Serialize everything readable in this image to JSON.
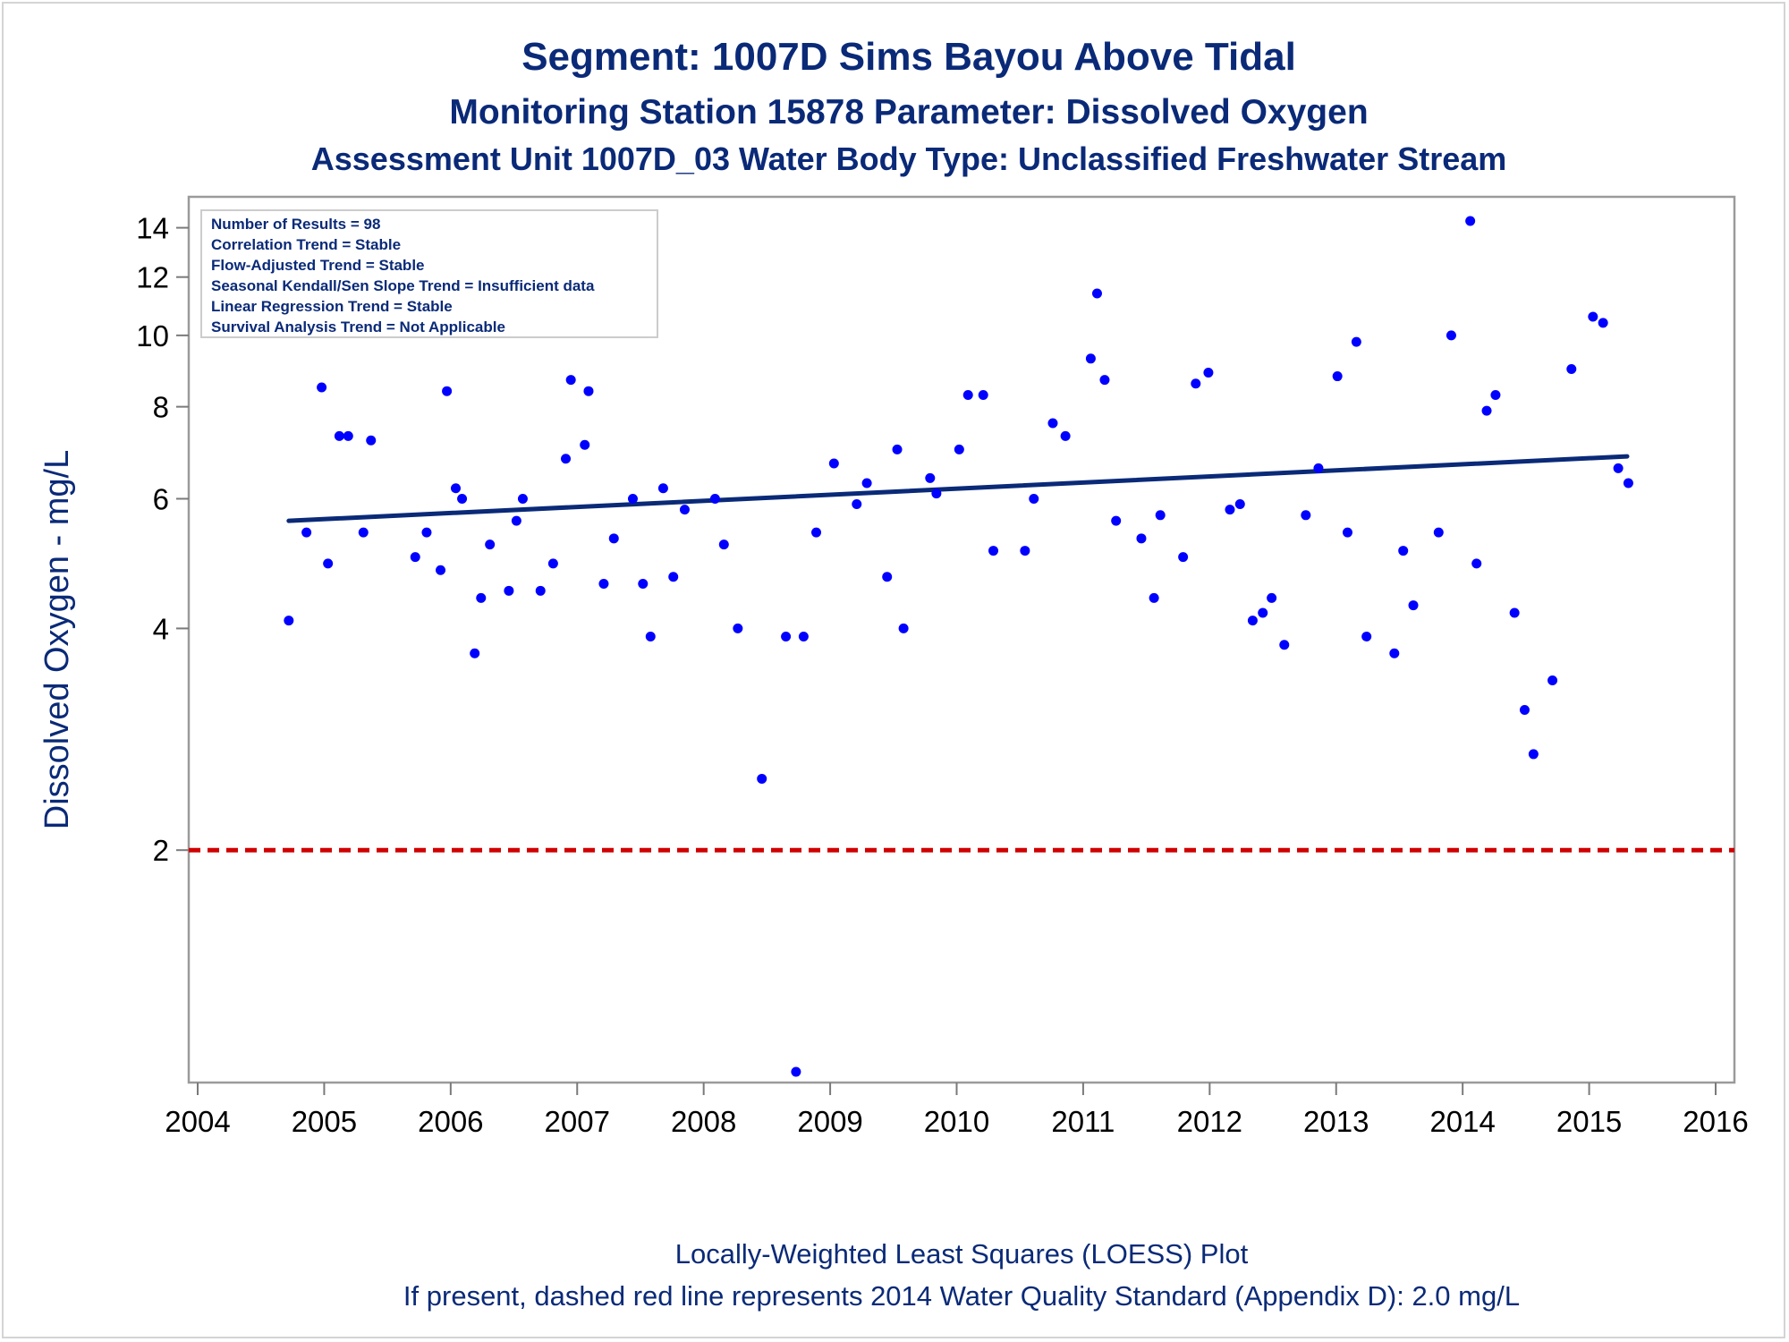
{
  "titles": {
    "line1": "Segment: 1007D  Sims Bayou Above Tidal",
    "line2": "Monitoring Station 15878 Parameter: Dissolved Oxygen",
    "line3": "Assessment Unit 1007D_03   Water Body Type: Unclassified Freshwater Stream"
  },
  "footer": {
    "line1": "Locally-Weighted Least Squares (LOESS) Plot",
    "line2": "If present, dashed red line represents 2014 Water Quality Standard (Appendix D): 2.0 mg/L"
  },
  "stats_box": [
    "Number of Results = 98",
    "Correlation Trend = Stable",
    "Flow-Adjusted Trend = Stable",
    "Seasonal Kendall/Sen Slope Trend = Insufficient data",
    "Linear Regression Trend = Stable",
    "Survival Analysis Trend = Not Applicable"
  ],
  "colors": {
    "points": "#0000ff",
    "trend_line": "#0a2a78",
    "standard_line": "#d00000",
    "text": "#0a2a78"
  },
  "chart_data": {
    "type": "scatter",
    "ylabel": "Dissolved Oxygen - mg/L",
    "xlabel": "",
    "y_scale": "log",
    "xlim": [
      2004,
      2016
    ],
    "ylim": [
      1.0,
      14.3
    ],
    "x_ticks": [
      2004,
      2005,
      2006,
      2007,
      2008,
      2009,
      2010,
      2011,
      2012,
      2013,
      2014,
      2015,
      2016
    ],
    "y_ticks": [
      2,
      4,
      6,
      8,
      10,
      12,
      14
    ],
    "standard_line": {
      "y": 2.0,
      "style": "dashed",
      "color": "#d00000"
    },
    "trend_line": {
      "x": [
        2004.72,
        2015.3
      ],
      "y": [
        5.6,
        6.85
      ]
    },
    "legend": "top-left",
    "series": [
      {
        "points": [
          [
            2004.72,
            4.1
          ],
          [
            2004.86,
            5.4
          ],
          [
            2004.98,
            8.5
          ],
          [
            2005.03,
            4.9
          ],
          [
            2005.12,
            7.3
          ],
          [
            2005.19,
            7.3
          ],
          [
            2005.31,
            5.4
          ],
          [
            2005.37,
            7.2
          ],
          [
            2005.72,
            5.0
          ],
          [
            2005.81,
            5.4
          ],
          [
            2005.92,
            4.8
          ],
          [
            2005.97,
            8.4
          ],
          [
            2006.04,
            6.2
          ],
          [
            2006.09,
            6.0
          ],
          [
            2006.19,
            3.7
          ],
          [
            2006.24,
            4.4
          ],
          [
            2006.31,
            5.2
          ],
          [
            2006.46,
            4.5
          ],
          [
            2006.52,
            5.6
          ],
          [
            2006.57,
            6.0
          ],
          [
            2006.71,
            4.5
          ],
          [
            2006.81,
            4.9
          ],
          [
            2006.91,
            6.8
          ],
          [
            2006.95,
            8.7
          ],
          [
            2007.06,
            7.1
          ],
          [
            2007.09,
            8.4
          ],
          [
            2007.21,
            4.6
          ],
          [
            2007.29,
            5.3
          ],
          [
            2007.44,
            6.0
          ],
          [
            2007.52,
            4.6
          ],
          [
            2007.58,
            3.9
          ],
          [
            2007.68,
            6.2
          ],
          [
            2007.76,
            4.7
          ],
          [
            2007.85,
            5.8
          ],
          [
            2008.09,
            6.0
          ],
          [
            2008.16,
            5.2
          ],
          [
            2008.27,
            4.0
          ],
          [
            2008.46,
            2.5
          ],
          [
            2008.65,
            3.9
          ],
          [
            2008.73,
            1.0
          ],
          [
            2008.79,
            3.9
          ],
          [
            2008.89,
            5.4
          ],
          [
            2009.03,
            6.7
          ],
          [
            2009.21,
            5.9
          ],
          [
            2009.29,
            6.3
          ],
          [
            2009.45,
            4.7
          ],
          [
            2009.53,
            7.0
          ],
          [
            2009.58,
            4.0
          ],
          [
            2009.79,
            6.4
          ],
          [
            2009.84,
            6.1
          ],
          [
            2010.02,
            7.0
          ],
          [
            2010.09,
            8.3
          ],
          [
            2010.21,
            8.3
          ],
          [
            2010.29,
            5.1
          ],
          [
            2010.54,
            5.1
          ],
          [
            2010.61,
            6.0
          ],
          [
            2010.76,
            7.6
          ],
          [
            2010.86,
            7.3
          ],
          [
            2011.06,
            9.3
          ],
          [
            2011.11,
            11.4
          ],
          [
            2011.17,
            8.7
          ],
          [
            2011.26,
            5.6
          ],
          [
            2011.46,
            5.3
          ],
          [
            2011.56,
            4.4
          ],
          [
            2011.61,
            5.7
          ],
          [
            2011.79,
            5.0
          ],
          [
            2011.89,
            8.6
          ],
          [
            2011.99,
            8.9
          ],
          [
            2012.16,
            5.8
          ],
          [
            2012.24,
            5.9
          ],
          [
            2012.34,
            4.1
          ],
          [
            2012.42,
            4.2
          ],
          [
            2012.49,
            4.4
          ],
          [
            2012.59,
            3.8
          ],
          [
            2012.76,
            5.7
          ],
          [
            2012.86,
            6.6
          ],
          [
            2013.01,
            8.8
          ],
          [
            2013.09,
            5.4
          ],
          [
            2013.16,
            9.8
          ],
          [
            2013.24,
            3.9
          ],
          [
            2013.46,
            3.7
          ],
          [
            2013.53,
            5.1
          ],
          [
            2013.61,
            4.3
          ],
          [
            2013.81,
            5.4
          ],
          [
            2013.91,
            10.0
          ],
          [
            2014.06,
            14.3
          ],
          [
            2014.11,
            4.9
          ],
          [
            2014.19,
            7.9
          ],
          [
            2014.26,
            8.3
          ],
          [
            2014.41,
            4.2
          ],
          [
            2014.49,
            3.1
          ],
          [
            2014.56,
            2.7
          ],
          [
            2014.71,
            3.4
          ],
          [
            2014.86,
            9.0
          ],
          [
            2015.03,
            10.6
          ],
          [
            2015.11,
            10.4
          ],
          [
            2015.23,
            6.6
          ],
          [
            2015.31,
            6.3
          ]
        ]
      }
    ]
  }
}
